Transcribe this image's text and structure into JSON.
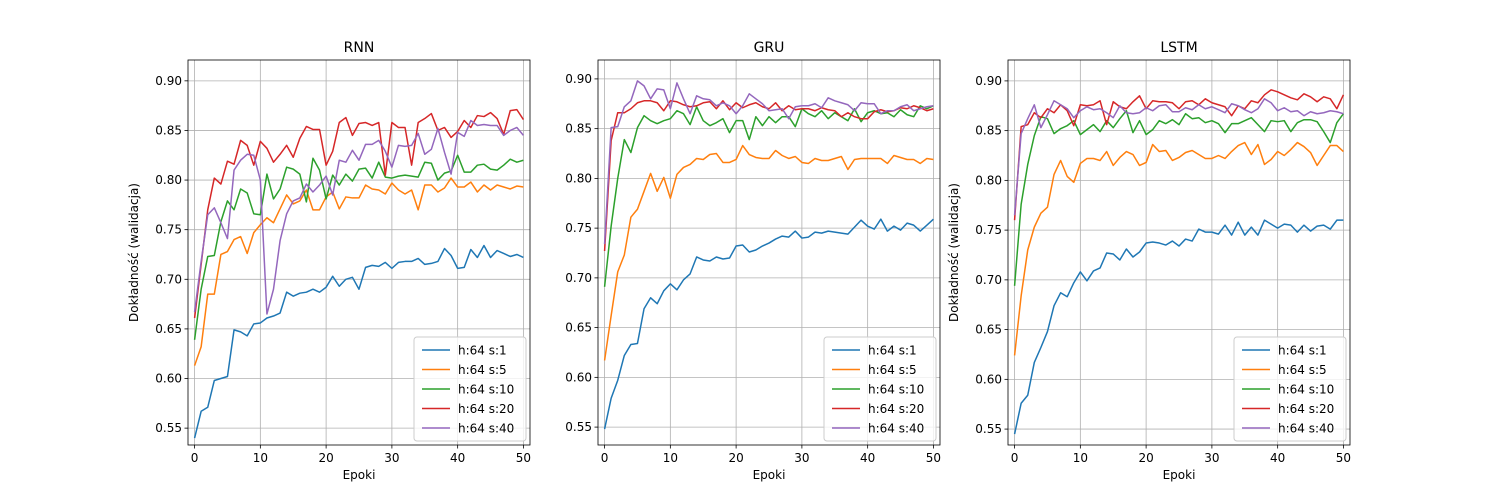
{
  "chart_data": [
    {
      "type": "line",
      "title": "RNN",
      "xlabel": "Epoki",
      "ylabel": "Dokładność (walidacja)",
      "xlim": [
        -1,
        51
      ],
      "ylim": [
        0.533,
        0.921
      ],
      "xticks": [
        0,
        10,
        20,
        30,
        40,
        50
      ],
      "yticks": [
        0.55,
        0.6,
        0.65,
        0.7,
        0.75,
        0.8,
        0.85,
        0.9
      ],
      "grid": true,
      "legend_position": "lower-right",
      "x": [
        0,
        1,
        2,
        3,
        4,
        5,
        6,
        7,
        8,
        9,
        10,
        11,
        12,
        13,
        14,
        15,
        16,
        17,
        18,
        19,
        20,
        21,
        22,
        23,
        24,
        25,
        26,
        27,
        28,
        29,
        30,
        31,
        32,
        33,
        34,
        35,
        36,
        37,
        38,
        39,
        40,
        41,
        42,
        43,
        44,
        45,
        46,
        47,
        48,
        49,
        50
      ],
      "series": [
        {
          "name": "h:64 s:1",
          "color": "#1f77b4",
          "values": [
            0.54,
            0.567,
            0.571,
            0.598,
            0.6,
            0.602,
            0.649,
            0.647,
            0.643,
            0.655,
            0.656,
            0.661,
            0.663,
            0.666,
            0.687,
            0.683,
            0.686,
            0.687,
            0.69,
            0.687,
            0.692,
            0.703,
            0.693,
            0.7,
            0.702,
            0.69,
            0.712,
            0.714,
            0.713,
            0.717,
            0.711,
            0.717,
            0.718,
            0.718,
            0.721,
            0.715,
            0.716,
            0.718,
            0.731,
            0.724,
            0.711,
            0.712,
            0.73,
            0.722,
            0.734,
            0.722,
            0.729,
            0.726,
            0.723,
            0.725,
            0.722
          ]
        },
        {
          "name": "h:64 s:5",
          "color": "#ff7f0e",
          "values": [
            0.613,
            0.632,
            0.685,
            0.685,
            0.725,
            0.728,
            0.74,
            0.743,
            0.726,
            0.747,
            0.755,
            0.762,
            0.757,
            0.771,
            0.785,
            0.776,
            0.779,
            0.79,
            0.77,
            0.77,
            0.783,
            0.788,
            0.771,
            0.783,
            0.782,
            0.782,
            0.795,
            0.791,
            0.79,
            0.786,
            0.797,
            0.79,
            0.786,
            0.79,
            0.77,
            0.795,
            0.795,
            0.788,
            0.792,
            0.802,
            0.793,
            0.793,
            0.798,
            0.788,
            0.795,
            0.79,
            0.795,
            0.793,
            0.791,
            0.794,
            0.793
          ]
        },
        {
          "name": "h:64 s:10",
          "color": "#2ca02c",
          "values": [
            0.639,
            0.69,
            0.723,
            0.724,
            0.758,
            0.779,
            0.77,
            0.791,
            0.787,
            0.766,
            0.765,
            0.806,
            0.781,
            0.791,
            0.813,
            0.811,
            0.806,
            0.778,
            0.822,
            0.81,
            0.781,
            0.805,
            0.795,
            0.806,
            0.799,
            0.811,
            0.812,
            0.802,
            0.818,
            0.803,
            0.802,
            0.804,
            0.805,
            0.804,
            0.803,
            0.818,
            0.817,
            0.8,
            0.807,
            0.809,
            0.825,
            0.808,
            0.808,
            0.815,
            0.816,
            0.811,
            0.81,
            0.815,
            0.821,
            0.818,
            0.82
          ]
        },
        {
          "name": "h:64 s:20",
          "color": "#d62728",
          "values": [
            0.661,
            0.715,
            0.77,
            0.802,
            0.796,
            0.819,
            0.816,
            0.84,
            0.835,
            0.815,
            0.839,
            0.832,
            0.818,
            0.826,
            0.835,
            0.823,
            0.842,
            0.854,
            0.851,
            0.851,
            0.815,
            0.829,
            0.858,
            0.863,
            0.845,
            0.857,
            0.858,
            0.855,
            0.858,
            0.805,
            0.858,
            0.853,
            0.853,
            0.815,
            0.858,
            0.862,
            0.867,
            0.85,
            0.853,
            0.843,
            0.849,
            0.86,
            0.853,
            0.865,
            0.864,
            0.868,
            0.862,
            0.846,
            0.87,
            0.871,
            0.861
          ]
        },
        {
          "name": "h:64 s:40",
          "color": "#9467bd",
          "values": [
            0.667,
            0.718,
            0.765,
            0.772,
            0.757,
            0.741,
            0.81,
            0.82,
            0.826,
            0.825,
            0.8,
            0.665,
            0.69,
            0.739,
            0.766,
            0.779,
            0.782,
            0.796,
            0.788,
            0.795,
            0.804,
            0.785,
            0.82,
            0.818,
            0.83,
            0.82,
            0.836,
            0.836,
            0.84,
            0.829,
            0.813,
            0.835,
            0.834,
            0.835,
            0.847,
            0.826,
            0.831,
            0.852,
            0.828,
            0.806,
            0.848,
            0.844,
            0.86,
            0.855,
            0.856,
            0.855,
            0.855,
            0.845,
            0.85,
            0.853,
            0.845
          ]
        }
      ]
    },
    {
      "type": "line",
      "title": "GRU",
      "xlabel": "Epoki",
      "ylabel": "",
      "xlim": [
        -1,
        51
      ],
      "ylim": [
        0.532,
        0.919
      ],
      "xticks": [
        0,
        10,
        20,
        30,
        40,
        50
      ],
      "yticks": [
        0.55,
        0.6,
        0.65,
        0.7,
        0.75,
        0.8,
        0.85,
        0.9
      ],
      "grid": true,
      "legend_position": "lower-right",
      "x": [
        0,
        1,
        2,
        3,
        4,
        5,
        6,
        7,
        8,
        9,
        10,
        11,
        12,
        13,
        14,
        15,
        16,
        17,
        18,
        19,
        20,
        21,
        22,
        23,
        24,
        25,
        26,
        27,
        28,
        29,
        30,
        31,
        32,
        33,
        34,
        35,
        36,
        37,
        38,
        39,
        40,
        41,
        42,
        43,
        44,
        45,
        46,
        47,
        48,
        49,
        50
      ],
      "series": [
        {
          "name": "h:64 s:1",
          "color": "#1f77b4",
          "values": [
            0.548,
            0.579,
            0.597,
            0.622,
            0.633,
            0.634,
            0.669,
            0.68,
            0.674,
            0.687,
            0.694,
            0.688,
            0.698,
            0.704,
            0.721,
            0.718,
            0.717,
            0.721,
            0.719,
            0.72,
            0.732,
            0.733,
            0.726,
            0.728,
            0.732,
            0.735,
            0.739,
            0.742,
            0.741,
            0.747,
            0.74,
            0.741,
            0.746,
            0.745,
            0.747,
            0.746,
            0.745,
            0.744,
            0.751,
            0.758,
            0.752,
            0.749,
            0.759,
            0.747,
            0.752,
            0.748,
            0.755,
            0.753,
            0.747,
            0.753,
            0.759
          ]
        },
        {
          "name": "h:64 s:5",
          "color": "#ff7f0e",
          "values": [
            0.617,
            0.662,
            0.706,
            0.723,
            0.761,
            0.769,
            0.787,
            0.805,
            0.787,
            0.801,
            0.78,
            0.804,
            0.811,
            0.814,
            0.82,
            0.819,
            0.824,
            0.825,
            0.816,
            0.816,
            0.819,
            0.833,
            0.824,
            0.821,
            0.82,
            0.82,
            0.828,
            0.823,
            0.82,
            0.822,
            0.816,
            0.815,
            0.82,
            0.818,
            0.818,
            0.82,
            0.822,
            0.809,
            0.819,
            0.82,
            0.82,
            0.82,
            0.82,
            0.815,
            0.823,
            0.821,
            0.819,
            0.819,
            0.815,
            0.82,
            0.819
          ]
        },
        {
          "name": "h:64 s:10",
          "color": "#2ca02c",
          "values": [
            0.691,
            0.752,
            0.8,
            0.839,
            0.826,
            0.851,
            0.863,
            0.858,
            0.855,
            0.858,
            0.86,
            0.868,
            0.865,
            0.854,
            0.872,
            0.858,
            0.853,
            0.856,
            0.86,
            0.846,
            0.858,
            0.858,
            0.839,
            0.862,
            0.853,
            0.862,
            0.856,
            0.862,
            0.862,
            0.852,
            0.87,
            0.865,
            0.862,
            0.868,
            0.86,
            0.866,
            0.862,
            0.858,
            0.87,
            0.857,
            0.866,
            0.868,
            0.865,
            0.866,
            0.862,
            0.869,
            0.864,
            0.862,
            0.873,
            0.87,
            0.873
          ]
        },
        {
          "name": "h:64 s:20",
          "color": "#d62728",
          "values": [
            0.727,
            0.838,
            0.866,
            0.866,
            0.87,
            0.876,
            0.878,
            0.878,
            0.876,
            0.868,
            0.878,
            0.877,
            0.874,
            0.872,
            0.873,
            0.876,
            0.877,
            0.87,
            0.878,
            0.869,
            0.876,
            0.871,
            0.874,
            0.876,
            0.872,
            0.87,
            0.876,
            0.868,
            0.873,
            0.869,
            0.87,
            0.87,
            0.868,
            0.871,
            0.869,
            0.868,
            0.862,
            0.866,
            0.862,
            0.86,
            0.86,
            0.867,
            0.869,
            0.867,
            0.868,
            0.871,
            0.87,
            0.873,
            0.871,
            0.868,
            0.87
          ]
        },
        {
          "name": "h:64 s:40",
          "color": "#9467bd",
          "values": [
            0.734,
            0.851,
            0.852,
            0.872,
            0.878,
            0.898,
            0.893,
            0.88,
            0.89,
            0.889,
            0.87,
            0.896,
            0.88,
            0.865,
            0.883,
            0.88,
            0.879,
            0.873,
            0.876,
            0.873,
            0.865,
            0.873,
            0.885,
            0.88,
            0.875,
            0.868,
            0.869,
            0.87,
            0.86,
            0.872,
            0.873,
            0.873,
            0.875,
            0.871,
            0.881,
            0.878,
            0.876,
            0.874,
            0.868,
            0.876,
            0.875,
            0.875,
            0.865,
            0.868,
            0.868,
            0.872,
            0.874,
            0.868,
            0.87,
            0.872,
            0.873
          ]
        }
      ]
    },
    {
      "type": "line",
      "title": "LSTM",
      "xlabel": "Epoki",
      "ylabel": "Dokładność (walidacja)",
      "xlim": [
        -1,
        51
      ],
      "ylim": [
        0.534,
        0.921
      ],
      "xticks": [
        0,
        10,
        20,
        30,
        40,
        50
      ],
      "yticks": [
        0.55,
        0.6,
        0.65,
        0.7,
        0.75,
        0.8,
        0.85,
        0.9
      ],
      "grid": true,
      "legend_position": "lower-right",
      "x": [
        0,
        1,
        2,
        3,
        4,
        5,
        6,
        7,
        8,
        9,
        10,
        11,
        12,
        13,
        14,
        15,
        16,
        17,
        18,
        19,
        20,
        21,
        22,
        23,
        24,
        25,
        26,
        27,
        28,
        29,
        30,
        31,
        32,
        33,
        34,
        35,
        36,
        37,
        38,
        39,
        40,
        41,
        42,
        43,
        44,
        45,
        46,
        47,
        48,
        49,
        50
      ],
      "series": [
        {
          "name": "h:64 s:1",
          "color": "#1f77b4",
          "values": [
            0.545,
            0.576,
            0.584,
            0.617,
            0.632,
            0.648,
            0.674,
            0.687,
            0.683,
            0.697,
            0.708,
            0.699,
            0.709,
            0.712,
            0.727,
            0.726,
            0.72,
            0.731,
            0.723,
            0.728,
            0.737,
            0.738,
            0.737,
            0.735,
            0.739,
            0.734,
            0.741,
            0.739,
            0.751,
            0.748,
            0.748,
            0.746,
            0.755,
            0.745,
            0.758,
            0.745,
            0.753,
            0.745,
            0.76,
            0.756,
            0.752,
            0.756,
            0.755,
            0.748,
            0.755,
            0.749,
            0.754,
            0.755,
            0.751,
            0.76,
            0.76
          ]
        },
        {
          "name": "h:64 s:5",
          "color": "#ff7f0e",
          "values": [
            0.624,
            0.684,
            0.73,
            0.753,
            0.767,
            0.773,
            0.806,
            0.82,
            0.804,
            0.798,
            0.817,
            0.822,
            0.822,
            0.82,
            0.829,
            0.815,
            0.823,
            0.829,
            0.826,
            0.815,
            0.818,
            0.836,
            0.829,
            0.83,
            0.82,
            0.823,
            0.828,
            0.83,
            0.826,
            0.822,
            0.822,
            0.825,
            0.822,
            0.829,
            0.835,
            0.838,
            0.826,
            0.836,
            0.816,
            0.821,
            0.829,
            0.825,
            0.831,
            0.838,
            0.834,
            0.828,
            0.815,
            0.825,
            0.835,
            0.835,
            0.829
          ]
        },
        {
          "name": "h:64 s:10",
          "color": "#2ca02c",
          "values": [
            0.694,
            0.776,
            0.816,
            0.845,
            0.864,
            0.862,
            0.847,
            0.852,
            0.855,
            0.86,
            0.846,
            0.851,
            0.856,
            0.849,
            0.86,
            0.853,
            0.862,
            0.87,
            0.848,
            0.86,
            0.846,
            0.851,
            0.86,
            0.857,
            0.861,
            0.856,
            0.867,
            0.862,
            0.863,
            0.858,
            0.86,
            0.857,
            0.848,
            0.857,
            0.857,
            0.86,
            0.863,
            0.856,
            0.849,
            0.86,
            0.859,
            0.86,
            0.849,
            0.858,
            0.861,
            0.861,
            0.859,
            0.849,
            0.838,
            0.858,
            0.867
          ]
        },
        {
          "name": "h:64 s:20",
          "color": "#d62728",
          "values": [
            0.76,
            0.854,
            0.856,
            0.868,
            0.863,
            0.872,
            0.868,
            0.876,
            0.87,
            0.855,
            0.876,
            0.875,
            0.876,
            0.88,
            0.856,
            0.879,
            0.874,
            0.872,
            0.879,
            0.885,
            0.872,
            0.88,
            0.879,
            0.879,
            0.878,
            0.872,
            0.879,
            0.88,
            0.876,
            0.882,
            0.878,
            0.876,
            0.874,
            0.865,
            0.875,
            0.872,
            0.88,
            0.878,
            0.886,
            0.891,
            0.889,
            0.886,
            0.883,
            0.881,
            0.887,
            0.884,
            0.879,
            0.884,
            0.882,
            0.872,
            0.886
          ]
        },
        {
          "name": "h:64 s:40",
          "color": "#9467bd",
          "values": [
            0.765,
            0.847,
            0.862,
            0.876,
            0.853,
            0.866,
            0.88,
            0.876,
            0.872,
            0.863,
            0.87,
            0.874,
            0.871,
            0.872,
            0.868,
            0.863,
            0.875,
            0.868,
            0.867,
            0.868,
            0.873,
            0.87,
            0.875,
            0.876,
            0.869,
            0.869,
            0.873,
            0.871,
            0.876,
            0.872,
            0.874,
            0.871,
            0.868,
            0.877,
            0.875,
            0.871,
            0.868,
            0.872,
            0.882,
            0.878,
            0.87,
            0.873,
            0.869,
            0.87,
            0.865,
            0.869,
            0.867,
            0.868,
            0.87,
            0.869,
            0.867
          ]
        }
      ]
    }
  ]
}
